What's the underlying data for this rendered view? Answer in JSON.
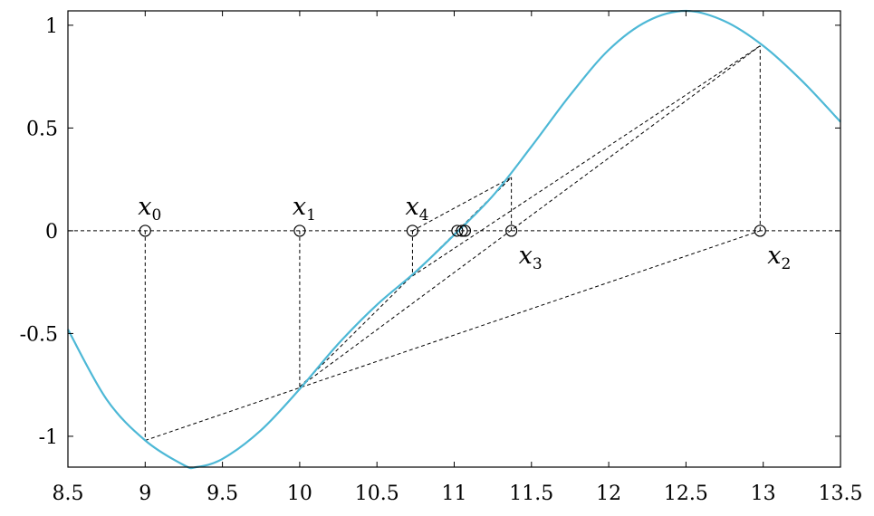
{
  "chart_data": {
    "type": "line",
    "title": "",
    "xlabel": "",
    "ylabel": "",
    "xlim": [
      8.5,
      13.5
    ],
    "ylim": [
      -1.15,
      1.07
    ],
    "grid": false,
    "legend": "none",
    "x_ticks": [
      "8.5",
      "9",
      "9.5",
      "10",
      "10.5",
      "11",
      "11.5",
      "12",
      "12.5",
      "13",
      "13.5"
    ],
    "y_ticks": [
      "-1",
      "-0.5",
      "0",
      "0.5",
      "1"
    ],
    "curve_color": "#4db8d6",
    "series": [
      {
        "x": [
          8.5,
          8.75,
          9.0,
          9.25,
          9.33,
          9.5,
          9.75,
          10.0,
          10.25,
          10.5,
          10.75,
          11.0,
          11.25,
          11.5,
          11.75,
          12.0,
          12.25,
          12.5,
          12.75,
          13.0,
          13.25,
          13.5
        ],
        "y": [
          -0.48,
          -0.82,
          -1.02,
          -1.14,
          -1.15,
          -1.11,
          -0.97,
          -0.77,
          -0.55,
          -0.36,
          -0.2,
          -0.02,
          0.17,
          0.41,
          0.66,
          0.88,
          1.02,
          1.07,
          1.02,
          0.9,
          0.73,
          0.53
        ]
      }
    ],
    "iterates": [
      {
        "label": "x",
        "sub": "0",
        "x": 9.0,
        "fx": -1.02,
        "label_pos": "above"
      },
      {
        "label": "x",
        "sub": "1",
        "x": 10.0,
        "fx": -0.76,
        "label_pos": "above"
      },
      {
        "label": "x",
        "sub": "2",
        "x": 12.98,
        "fx": 0.9,
        "label_pos": "below"
      },
      {
        "label": "x",
        "sub": "3",
        "x": 11.37,
        "fx": 0.26,
        "label_pos": "below"
      },
      {
        "label": "x",
        "sub": "4",
        "x": 10.73,
        "fx": -0.22,
        "label_pos": "above"
      },
      {
        "label": "",
        "sub": "",
        "x": 11.02,
        "fx": 0.0,
        "label_pos": "none"
      },
      {
        "label": "",
        "sub": "",
        "x": 11.05,
        "fx": 0.0,
        "label_pos": "none"
      },
      {
        "label": "",
        "sub": "",
        "x": 11.07,
        "fx": 0.0,
        "label_pos": "none"
      }
    ],
    "secants": [
      {
        "from": [
          9.0,
          -1.02
        ],
        "to": [
          12.98,
          0.0
        ]
      },
      {
        "from": [
          10.0,
          -0.76
        ],
        "to": [
          12.98,
          0.9
        ]
      },
      {
        "from": [
          10.0,
          -0.76
        ],
        "to": [
          11.37,
          0.26
        ]
      },
      {
        "from": [
          10.73,
          -0.22
        ],
        "to": [
          12.98,
          0.9
        ]
      },
      {
        "from": [
          10.73,
          0.0
        ],
        "to": [
          11.37,
          0.26
        ]
      },
      {
        "from": [
          10.73,
          -0.22
        ],
        "to": [
          11.37,
          0.26
        ]
      }
    ]
  }
}
